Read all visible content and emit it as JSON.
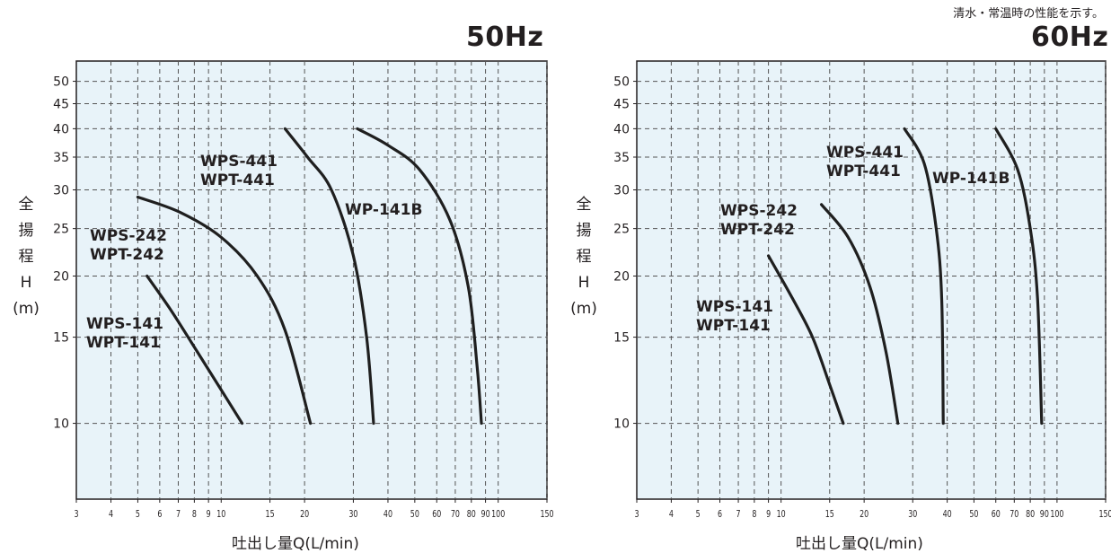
{
  "note": "清水・常温時の性能を示す。",
  "charts": [
    {
      "id": "50hz",
      "frequency_label": "50Hz",
      "y_label_chars": [
        "全",
        "揚",
        "程",
        "H",
        "(m)"
      ],
      "x_label": "吐出し量Q(L/min)"
    },
    {
      "id": "60hz",
      "frequency_label": "60Hz",
      "y_label_chars": [
        "全",
        "揚",
        "程",
        "H",
        "(m)"
      ],
      "x_label": "吐出し量Q(L/min)"
    }
  ],
  "chart_data": [
    {
      "type": "line",
      "title": "50Hz",
      "xlabel": "吐出し量Q(L/min)",
      "ylabel": "全揚程H (m)",
      "x_scale": "log",
      "y_scale": "log",
      "xlim": [
        3,
        150
      ],
      "ylim": [
        7,
        55
      ],
      "x_ticks": [
        3,
        4,
        5,
        6,
        7,
        8,
        9,
        10,
        15,
        20,
        30,
        40,
        50,
        60,
        70,
        80,
        90,
        100,
        150
      ],
      "y_ticks": [
        10,
        15,
        20,
        25,
        30,
        35,
        40,
        45,
        50
      ],
      "grid": true,
      "background": "#e8f3f9",
      "series": [
        {
          "label_lines": [
            "WPS-141",
            "WPT-141"
          ],
          "points": [
            [
              5.4,
              20
            ],
            [
              6.6,
              17
            ],
            [
              8.2,
              14
            ],
            [
              10.2,
              11.5
            ],
            [
              11.9,
              10
            ]
          ]
        },
        {
          "label_lines": [
            "WPS-242",
            "WPT-242"
          ],
          "points": [
            [
              5.0,
              29
            ],
            [
              7.1,
              27
            ],
            [
              10.0,
              24
            ],
            [
              13.5,
              20
            ],
            [
              17.0,
              15.5
            ],
            [
              21.0,
              10
            ]
          ]
        },
        {
          "label_lines": [
            "WPS-441",
            "WPT-441"
          ],
          "points": [
            [
              17.0,
              40
            ],
            [
              20.5,
              35
            ],
            [
              25.0,
              30
            ],
            [
              30.0,
              22
            ],
            [
              33.5,
              15
            ],
            [
              35.5,
              10
            ]
          ]
        },
        {
          "label_lines": [
            "WP-141B"
          ],
          "points": [
            [
              31.0,
              40
            ],
            [
              40.0,
              37
            ],
            [
              52.0,
              33
            ],
            [
              67.0,
              26
            ],
            [
              78.0,
              19
            ],
            [
              84.0,
              13
            ],
            [
              87.0,
              10
            ]
          ]
        }
      ]
    },
    {
      "type": "line",
      "title": "60Hz",
      "xlabel": "吐出し量Q(L/min)",
      "ylabel": "全揚程H (m)",
      "x_scale": "log",
      "y_scale": "log",
      "xlim": [
        3,
        150
      ],
      "ylim": [
        7,
        55
      ],
      "x_ticks": [
        3,
        4,
        5,
        6,
        7,
        8,
        9,
        10,
        15,
        20,
        30,
        40,
        50,
        60,
        70,
        80,
        90,
        100,
        150
      ],
      "y_ticks": [
        10,
        15,
        20,
        25,
        30,
        35,
        40,
        45,
        50
      ],
      "grid": true,
      "background": "#e8f3f9",
      "series": [
        {
          "label_lines": [
            "WPS-141",
            "WPT-141"
          ],
          "points": [
            [
              9.0,
              22
            ],
            [
              11.0,
              18
            ],
            [
              13.0,
              15
            ],
            [
              15.0,
              12
            ],
            [
              16.8,
              10
            ]
          ]
        },
        {
          "label_lines": [
            "WPS-242",
            "WPT-242"
          ],
          "points": [
            [
              14.0,
              28
            ],
            [
              17.5,
              24
            ],
            [
              21.0,
              19
            ],
            [
              24.0,
              14
            ],
            [
              26.5,
              10
            ]
          ]
        },
        {
          "label_lines": [
            "WPS-441",
            "WPT-441"
          ],
          "points": [
            [
              28.0,
              40
            ],
            [
              33.0,
              34
            ],
            [
              36.5,
              25
            ],
            [
              38.2,
              18
            ],
            [
              38.7,
              10
            ]
          ]
        },
        {
          "label_lines": [
            "WP-141B"
          ],
          "points": [
            [
              60.0,
              40
            ],
            [
              72.0,
              33
            ],
            [
              80.0,
              25
            ],
            [
              85.0,
              18
            ],
            [
              88.0,
              10
            ]
          ]
        }
      ]
    }
  ]
}
